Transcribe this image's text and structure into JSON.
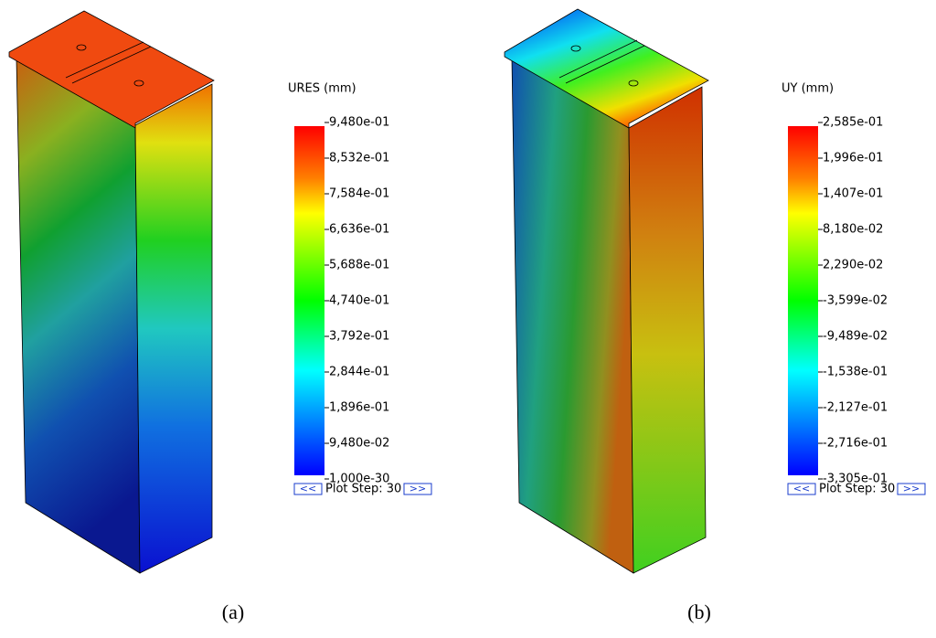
{
  "panels": [
    {
      "legend_title": "URES (mm)",
      "tick_labels": [
        "9,480e-01",
        "8,532e-01",
        "7,584e-01",
        "6,636e-01",
        "5,688e-01",
        "4,740e-01",
        "3,792e-01",
        "2,844e-01",
        "1,896e-01",
        "9,480e-02",
        "1,000e-30"
      ],
      "prev_button": "<<",
      "plot_step": "Plot Step: 30",
      "next_button": ">>",
      "caption": "(a)"
    },
    {
      "legend_title": "UY (mm)",
      "tick_labels": [
        "2,585e-01",
        "1,996e-01",
        "1,407e-01",
        "8,180e-02",
        "2,290e-02",
        "-3,599e-02",
        "-9,489e-02",
        "-1,538e-01",
        "-2,127e-01",
        "-2,716e-01",
        "-3,305e-01"
      ],
      "prev_button": "<<",
      "plot_step": "Plot Step: 30",
      "next_button": ">>",
      "caption": "(b)"
    }
  ]
}
